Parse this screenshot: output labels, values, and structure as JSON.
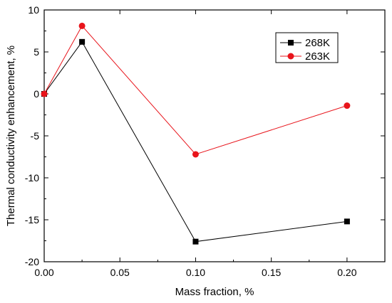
{
  "chart_data": {
    "type": "line",
    "title": "",
    "xlabel": "Mass fraction, %",
    "ylabel": "Thermal conductivity enhancement, %",
    "xlim": [
      0.0,
      0.225
    ],
    "ylim": [
      -20,
      10
    ],
    "xticks": [
      0.0,
      0.05,
      0.1,
      0.15,
      0.2
    ],
    "xtick_labels": [
      "0.00",
      "0.05",
      "0.10",
      "0.15",
      "0.20"
    ],
    "yticks": [
      10,
      5,
      0,
      -5,
      -10,
      -15,
      -20
    ],
    "ytick_labels": [
      "10",
      "5",
      "0",
      "-5",
      "-10",
      "-15",
      "-20"
    ],
    "grid": false,
    "legend_position": "top-right",
    "series": [
      {
        "name": "268K",
        "color": "#000000",
        "marker": "square",
        "x": [
          0.0,
          0.025,
          0.1,
          0.2
        ],
        "y": [
          0.0,
          6.2,
          -17.6,
          -15.2
        ]
      },
      {
        "name": "263K",
        "color": "#e8141b",
        "marker": "circle",
        "x": [
          0.0,
          0.025,
          0.1,
          0.2
        ],
        "y": [
          0.0,
          8.1,
          -7.2,
          -1.4
        ]
      }
    ]
  }
}
